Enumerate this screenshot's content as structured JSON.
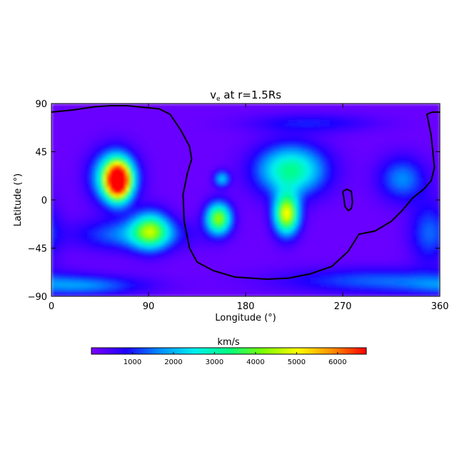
{
  "chart_data": {
    "type": "heatmap",
    "title_prefix": "v",
    "title_sub": "e",
    "title_suffix": " at r=1.5Rs",
    "xlabel": "Longitude (°)",
    "ylabel": "Latitude (°)",
    "xlim": [
      0,
      360
    ],
    "ylim": [
      -90,
      90
    ],
    "xticks": [
      0,
      90,
      180,
      270,
      360
    ],
    "yticks": [
      90,
      45,
      0,
      -45,
      -90
    ],
    "colorbar": {
      "label": "km/s",
      "range": [
        0,
        6700
      ],
      "ticks": [
        1000,
        2000,
        3000,
        4000,
        5000,
        6000
      ],
      "colors": [
        "#7a00ff",
        "#1e00ff",
        "#0090ff",
        "#00f0f0",
        "#00ff80",
        "#7cff00",
        "#ffff00",
        "#ff9000",
        "#ff0000"
      ]
    },
    "background_value": 150,
    "blobs": [
      {
        "lon": 62,
        "lat": 18,
        "peak": 6700,
        "sx": 8,
        "sy": 12
      },
      {
        "lon": 58,
        "lat": 22,
        "peak": 3200,
        "sx": 14,
        "sy": 16
      },
      {
        "lon": 92,
        "lat": -28,
        "peak": 3300,
        "sx": 12,
        "sy": 12
      },
      {
        "lon": 75,
        "lat": -32,
        "peak": 1500,
        "sx": 35,
        "sy": 10
      },
      {
        "lon": 155,
        "lat": -17,
        "peak": 4200,
        "sx": 8,
        "sy": 10
      },
      {
        "lon": 158,
        "lat": 20,
        "peak": 2000,
        "sx": 5,
        "sy": 5
      },
      {
        "lon": 218,
        "lat": -13,
        "peak": 4800,
        "sx": 8,
        "sy": 13
      },
      {
        "lon": 222,
        "lat": 28,
        "peak": 3100,
        "sx": 22,
        "sy": 16
      },
      {
        "lon": 240,
        "lat": 72,
        "peak": 800,
        "sx": 40,
        "sy": 6
      },
      {
        "lon": 325,
        "lat": 20,
        "peak": 1500,
        "sx": 15,
        "sy": 14
      },
      {
        "lon": 350,
        "lat": -30,
        "peak": 1200,
        "sx": 12,
        "sy": 20
      },
      {
        "lon": 30,
        "lat": -80,
        "peak": 1300,
        "sx": 40,
        "sy": 6
      },
      {
        "lon": 300,
        "lat": -75,
        "peak": 1200,
        "sx": 60,
        "sy": 8
      }
    ],
    "neutral_line": [
      [
        0,
        82
      ],
      [
        20,
        84
      ],
      [
        40,
        87
      ],
      [
        55,
        88
      ],
      [
        70,
        88
      ],
      [
        90,
        86
      ],
      [
        100,
        85
      ],
      [
        110,
        80
      ],
      [
        120,
        65
      ],
      [
        128,
        50
      ],
      [
        130,
        38
      ],
      [
        126,
        25
      ],
      [
        122,
        5
      ],
      [
        123,
        -20
      ],
      [
        128,
        -45
      ],
      [
        135,
        -58
      ],
      [
        150,
        -66
      ],
      [
        170,
        -72
      ],
      [
        200,
        -74
      ],
      [
        220,
        -73
      ],
      [
        240,
        -69
      ],
      [
        260,
        -62
      ],
      [
        275,
        -48
      ],
      [
        285,
        -32
      ],
      [
        300,
        -29
      ],
      [
        315,
        -20
      ],
      [
        325,
        -10
      ],
      [
        335,
        2
      ],
      [
        345,
        10
      ],
      [
        352,
        18
      ],
      [
        355,
        30
      ],
      [
        352,
        60
      ],
      [
        348,
        80
      ],
      [
        353,
        82
      ],
      [
        360,
        82
      ]
    ],
    "neutral_loop": [
      [
        270,
        8
      ],
      [
        274,
        10
      ],
      [
        278,
        8
      ],
      [
        279,
        -2
      ],
      [
        278,
        -8
      ],
      [
        275,
        -10
      ],
      [
        272,
        -6
      ],
      [
        271,
        2
      ],
      [
        270,
        8
      ]
    ]
  }
}
